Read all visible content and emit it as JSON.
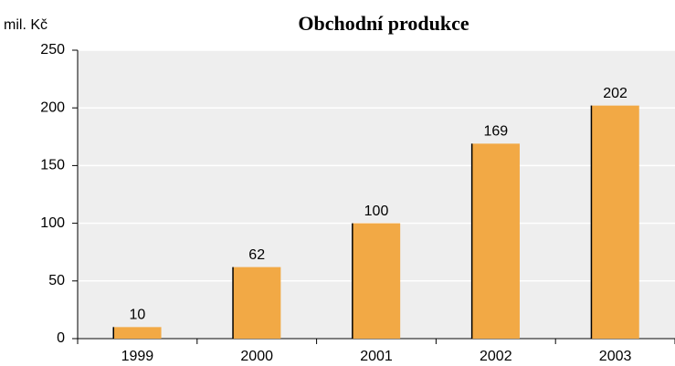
{
  "chart_data": {
    "type": "bar",
    "title": "Obchodní produkce",
    "y_label": "mil. Kč",
    "categories": [
      "1999",
      "2000",
      "2001",
      "2002",
      "2003"
    ],
    "values": [
      10,
      62,
      100,
      169,
      202
    ],
    "color": "#f2a945",
    "ylim": [
      0,
      250
    ],
    "yticks": [
      0,
      50,
      100,
      150,
      200,
      250
    ],
    "grid": true
  }
}
